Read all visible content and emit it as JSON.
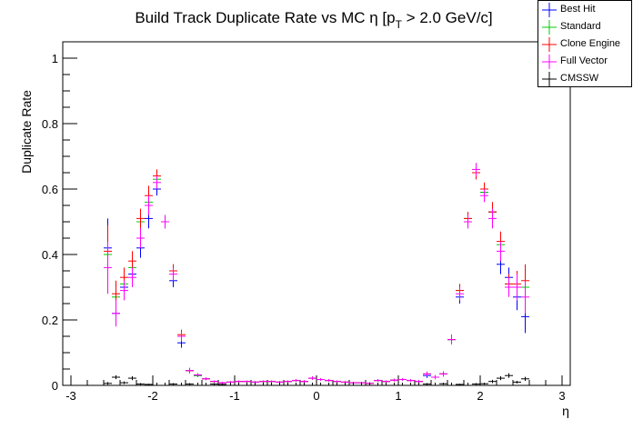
{
  "chart_data": {
    "type": "scatter",
    "title": "Build Track Duplicate Rate vs MC η [p",
    "title_sub": "T",
    "title_tail": " > 2.0 GeV/c]",
    "xlabel": "η",
    "ylabel": "Duplicate Rate",
    "xlim": [
      -3.1,
      3.1
    ],
    "ylim": [
      0,
      1.05
    ],
    "xticks": [
      -3,
      -2,
      -1,
      0,
      1,
      2,
      3
    ],
    "xtick_labels": [
      "-3",
      "-2",
      "-1",
      "0",
      "1",
      "2",
      "3"
    ],
    "yticks": [
      0,
      0.2,
      0.4,
      0.6,
      0.8,
      1
    ],
    "ytick_labels": [
      "0",
      "0.2",
      "0.4",
      "0.6",
      "0.8",
      "1"
    ],
    "bin_half_width": 0.05,
    "legend": [
      "Best Hit",
      "Standard",
      "Clone Engine",
      "Full Vector",
      "CMSSW"
    ],
    "legend_position": "top-right",
    "series": [
      {
        "name": "Best Hit",
        "color": "#0000ff",
        "x": [
          -2.55,
          -2.45,
          -2.35,
          -2.25,
          -2.15,
          -2.05,
          -1.95,
          -1.85,
          -1.75,
          -1.65,
          -1.55,
          -1.45,
          -1.35,
          -1.25,
          -1.15,
          -1.05,
          -0.95,
          -0.85,
          -0.75,
          -0.65,
          -0.55,
          -0.45,
          -0.35,
          -0.25,
          -0.15,
          -0.05,
          0.05,
          0.15,
          0.25,
          0.35,
          0.45,
          0.55,
          0.65,
          0.75,
          0.85,
          0.95,
          1.05,
          1.15,
          1.25,
          1.35,
          1.45,
          1.55,
          1.65,
          1.75,
          1.85,
          1.95,
          2.05,
          2.15,
          2.25,
          2.35,
          2.45,
          2.55
        ],
        "y": [
          0.42,
          0.22,
          0.3,
          0.34,
          0.42,
          0.51,
          0.6,
          0.5,
          0.32,
          0.13,
          0.045,
          0.03,
          0.02,
          0.012,
          0.008,
          0.01,
          0.012,
          0.012,
          0.01,
          0.012,
          0.012,
          0.01,
          0.012,
          0.015,
          0.012,
          0.022,
          0.018,
          0.015,
          0.012,
          0.01,
          0.008,
          0.008,
          0.006,
          0.015,
          0.012,
          0.016,
          0.018,
          0.015,
          0.012,
          0.03,
          0.025,
          0.035,
          0.14,
          0.27,
          0.5,
          0.65,
          0.59,
          0.53,
          0.37,
          0.33,
          0.27,
          0.21
        ],
        "err": [
          0.09,
          0.03,
          0.03,
          0.03,
          0.03,
          0.03,
          0.02,
          0.02,
          0.02,
          0.015,
          0.008,
          0.005,
          0.004,
          0.003,
          0.003,
          0.003,
          0.003,
          0.003,
          0.003,
          0.003,
          0.003,
          0.003,
          0.003,
          0.004,
          0.004,
          0.005,
          0.004,
          0.004,
          0.003,
          0.003,
          0.003,
          0.003,
          0.003,
          0.004,
          0.003,
          0.004,
          0.004,
          0.004,
          0.004,
          0.007,
          0.006,
          0.008,
          0.015,
          0.02,
          0.02,
          0.02,
          0.02,
          0.03,
          0.03,
          0.03,
          0.04,
          0.05
        ]
      },
      {
        "name": "Standard",
        "color": "#00cc00",
        "x": [
          -2.55,
          -2.45,
          -2.35,
          -2.25,
          -2.15,
          -2.05,
          -1.95,
          -1.85,
          -1.75,
          -1.65,
          -1.55,
          -1.45,
          -1.35,
          -1.25,
          -1.15,
          -1.05,
          -0.95,
          -0.85,
          -0.75,
          -0.65,
          -0.55,
          -0.45,
          -0.35,
          -0.25,
          -0.15,
          -0.05,
          0.05,
          0.15,
          0.25,
          0.35,
          0.45,
          0.55,
          0.65,
          0.75,
          0.85,
          0.95,
          1.05,
          1.15,
          1.25,
          1.35,
          1.45,
          1.55,
          1.65,
          1.75,
          1.85,
          1.95,
          2.05,
          2.15,
          2.25,
          2.35,
          2.45,
          2.55
        ],
        "y": [
          0.4,
          0.27,
          0.31,
          0.36,
          0.5,
          0.56,
          0.63,
          0.5,
          0.35,
          0.15,
          0.045,
          0.03,
          0.02,
          0.012,
          0.008,
          0.01,
          0.012,
          0.012,
          0.01,
          0.012,
          0.012,
          0.01,
          0.012,
          0.015,
          0.012,
          0.022,
          0.018,
          0.015,
          0.012,
          0.01,
          0.008,
          0.008,
          0.006,
          0.015,
          0.012,
          0.016,
          0.018,
          0.015,
          0.012,
          0.035,
          0.025,
          0.035,
          0.14,
          0.29,
          0.51,
          0.65,
          0.59,
          0.53,
          0.43,
          0.31,
          0.3,
          0.3
        ],
        "err": [
          0.08,
          0.04,
          0.03,
          0.03,
          0.03,
          0.03,
          0.02,
          0.02,
          0.02,
          0.015,
          0.008,
          0.005,
          0.004,
          0.003,
          0.003,
          0.003,
          0.003,
          0.003,
          0.003,
          0.003,
          0.003,
          0.003,
          0.003,
          0.004,
          0.004,
          0.005,
          0.004,
          0.004,
          0.003,
          0.003,
          0.003,
          0.003,
          0.003,
          0.004,
          0.003,
          0.004,
          0.004,
          0.004,
          0.004,
          0.007,
          0.006,
          0.008,
          0.015,
          0.02,
          0.02,
          0.02,
          0.02,
          0.03,
          0.03,
          0.03,
          0.04,
          0.05
        ]
      },
      {
        "name": "Clone Engine",
        "color": "#ff0000",
        "x": [
          -2.55,
          -2.45,
          -2.35,
          -2.25,
          -2.15,
          -2.05,
          -1.95,
          -1.85,
          -1.75,
          -1.65,
          -1.55,
          -1.45,
          -1.35,
          -1.25,
          -1.15,
          -1.05,
          -0.95,
          -0.85,
          -0.75,
          -0.65,
          -0.55,
          -0.45,
          -0.35,
          -0.25,
          -0.15,
          -0.05,
          0.05,
          0.15,
          0.25,
          0.35,
          0.45,
          0.55,
          0.65,
          0.75,
          0.85,
          0.95,
          1.05,
          1.15,
          1.25,
          1.35,
          1.45,
          1.55,
          1.65,
          1.75,
          1.85,
          1.95,
          2.05,
          2.15,
          2.25,
          2.35,
          2.45,
          2.55
        ],
        "y": [
          0.41,
          0.28,
          0.33,
          0.38,
          0.51,
          0.58,
          0.64,
          0.5,
          0.35,
          0.155,
          0.045,
          0.032,
          0.02,
          0.012,
          0.008,
          0.01,
          0.012,
          0.012,
          0.01,
          0.012,
          0.012,
          0.01,
          0.012,
          0.015,
          0.012,
          0.022,
          0.018,
          0.015,
          0.012,
          0.01,
          0.008,
          0.008,
          0.006,
          0.015,
          0.012,
          0.016,
          0.018,
          0.015,
          0.012,
          0.035,
          0.025,
          0.035,
          0.14,
          0.29,
          0.51,
          0.65,
          0.6,
          0.53,
          0.44,
          0.31,
          0.31,
          0.32
        ],
        "err": [
          0.08,
          0.04,
          0.03,
          0.03,
          0.03,
          0.03,
          0.02,
          0.02,
          0.02,
          0.015,
          0.008,
          0.005,
          0.004,
          0.003,
          0.003,
          0.003,
          0.003,
          0.003,
          0.003,
          0.003,
          0.003,
          0.003,
          0.003,
          0.004,
          0.004,
          0.005,
          0.004,
          0.004,
          0.003,
          0.003,
          0.003,
          0.003,
          0.003,
          0.004,
          0.003,
          0.004,
          0.004,
          0.004,
          0.004,
          0.007,
          0.006,
          0.008,
          0.015,
          0.02,
          0.02,
          0.02,
          0.02,
          0.03,
          0.03,
          0.03,
          0.04,
          0.05
        ]
      },
      {
        "name": "Full Vector",
        "color": "#ff00ff",
        "x": [
          -2.55,
          -2.45,
          -2.35,
          -2.25,
          -2.15,
          -2.05,
          -1.95,
          -1.85,
          -1.75,
          -1.65,
          -1.55,
          -1.45,
          -1.35,
          -1.25,
          -1.15,
          -1.05,
          -0.95,
          -0.85,
          -0.75,
          -0.65,
          -0.55,
          -0.45,
          -0.35,
          -0.25,
          -0.15,
          -0.05,
          0.05,
          0.15,
          0.25,
          0.35,
          0.45,
          0.55,
          0.65,
          0.75,
          0.85,
          0.95,
          1.05,
          1.15,
          1.25,
          1.35,
          1.45,
          1.55,
          1.65,
          1.75,
          1.85,
          1.95,
          2.05,
          2.15,
          2.25,
          2.35,
          2.45,
          2.55
        ],
        "y": [
          0.36,
          0.22,
          0.29,
          0.33,
          0.45,
          0.55,
          0.62,
          0.5,
          0.34,
          0.15,
          0.045,
          0.032,
          0.02,
          0.012,
          0.008,
          0.01,
          0.012,
          0.012,
          0.01,
          0.012,
          0.012,
          0.01,
          0.012,
          0.015,
          0.012,
          0.022,
          0.018,
          0.015,
          0.012,
          0.01,
          0.008,
          0.008,
          0.006,
          0.015,
          0.012,
          0.016,
          0.018,
          0.015,
          0.012,
          0.035,
          0.025,
          0.035,
          0.14,
          0.28,
          0.5,
          0.66,
          0.58,
          0.51,
          0.41,
          0.3,
          0.3,
          0.27
        ],
        "err": [
          0.08,
          0.04,
          0.03,
          0.03,
          0.03,
          0.03,
          0.02,
          0.02,
          0.02,
          0.015,
          0.008,
          0.005,
          0.004,
          0.003,
          0.003,
          0.003,
          0.003,
          0.003,
          0.003,
          0.003,
          0.003,
          0.003,
          0.003,
          0.004,
          0.004,
          0.005,
          0.004,
          0.004,
          0.003,
          0.003,
          0.003,
          0.003,
          0.003,
          0.004,
          0.003,
          0.004,
          0.004,
          0.004,
          0.004,
          0.007,
          0.006,
          0.008,
          0.015,
          0.02,
          0.02,
          0.02,
          0.02,
          0.03,
          0.03,
          0.03,
          0.04,
          0.05
        ]
      },
      {
        "name": "CMSSW",
        "color": "#000000",
        "x": [
          -2.55,
          -2.45,
          -2.35,
          -2.25,
          -2.15,
          -2.05,
          -1.95,
          -1.85,
          -1.75,
          -1.65,
          -1.55,
          -1.45,
          -1.35,
          -1.25,
          -1.15,
          -1.05,
          -0.95,
          -0.85,
          -0.75,
          -0.65,
          -0.55,
          -0.45,
          -0.35,
          -0.25,
          -0.15,
          -0.05,
          0.05,
          0.15,
          0.25,
          0.35,
          0.45,
          0.55,
          0.65,
          0.75,
          0.85,
          0.95,
          1.05,
          1.15,
          1.25,
          1.35,
          1.45,
          1.55,
          1.65,
          1.75,
          1.85,
          1.95,
          2.05,
          2.15,
          2.25,
          2.35,
          2.45,
          2.55
        ],
        "y": [
          0.006,
          0.025,
          0.008,
          0.022,
          0.004,
          0.003,
          0.0,
          0.0,
          0.004,
          0.0,
          0.004,
          0.0,
          0.0,
          0.004,
          0.003,
          0.0,
          0.0,
          0.0,
          0.0,
          0.0,
          0.0,
          0.0,
          0.0,
          0.0,
          0.0,
          0.0,
          0.0,
          0.0,
          0.0,
          0.0,
          0.0,
          0.0,
          0.0,
          0.0,
          0.0,
          0.0,
          0.0,
          0.0,
          0.0,
          0.004,
          0.0,
          0.005,
          0.0,
          0.003,
          0.0,
          0.004,
          0.005,
          0.012,
          0.022,
          0.03,
          0.01,
          0.02
        ],
        "err": [
          0.004,
          0.006,
          0.004,
          0.006,
          0.003,
          0.002,
          0.0,
          0.0,
          0.003,
          0.0,
          0.003,
          0.0,
          0.0,
          0.003,
          0.002,
          0.0,
          0.0,
          0.0,
          0.0,
          0.0,
          0.0,
          0.0,
          0.0,
          0.0,
          0.0,
          0.0,
          0.0,
          0.0,
          0.0,
          0.0,
          0.0,
          0.0,
          0.0,
          0.0,
          0.0,
          0.0,
          0.0,
          0.0,
          0.0,
          0.003,
          0.0,
          0.003,
          0.0,
          0.002,
          0.0,
          0.003,
          0.003,
          0.005,
          0.006,
          0.007,
          0.004,
          0.006
        ]
      }
    ]
  }
}
